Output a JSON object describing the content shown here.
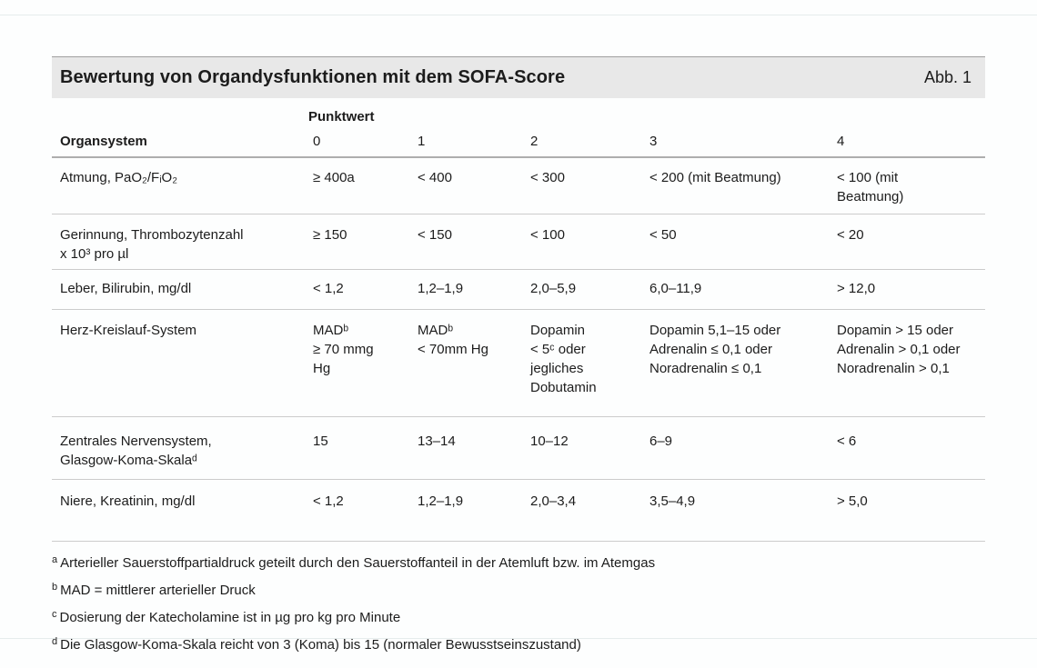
{
  "figure": {
    "title": "Bewertung von Organdysfunktionen mit dem SOFA-Score",
    "label": "Abb. 1"
  },
  "table": {
    "points_header": "Punktwert",
    "columns": [
      "Organsystem",
      "0",
      "1",
      "2",
      "3",
      "4"
    ],
    "rows": [
      {
        "organ": "Atmung, PaO₂/FᵢO₂",
        "scores": [
          "≥ 400a",
          "< 400",
          "< 300",
          "< 200 (mit Beatmung)",
          "< 100 (mit\nBeatmung)"
        ]
      },
      {
        "organ": "Gerinnung, Thrombozytenzahl\nx 10³ pro µl",
        "scores": [
          "≥ 150",
          "< 150",
          "< 100",
          "< 50",
          "< 20"
        ]
      },
      {
        "organ": "Leber, Bilirubin, mg/dl",
        "scores": [
          "< 1,2",
          "1,2–1,9",
          "2,0–5,9",
          "6,0–11,9",
          "> 12,0"
        ]
      },
      {
        "organ": "Herz-Kreislauf-System",
        "scores": [
          "MADᵇ\n≥ 70 mmg\nHg",
          "MADᵇ\n< 70mm Hg",
          "Dopamin\n< 5ᶜ oder\njegliches\nDobutamin",
          "Dopamin 5,1–15 oder\nAdrenalin ≤ 0,1 oder\nNoradrenalin ≤ 0,1",
          "Dopamin > 15 oder\nAdrenalin > 0,1 oder\nNoradrenalin > 0,1"
        ]
      },
      {
        "organ": "Zentrales Nervensystem,\nGlasgow-Koma-Skalaᵈ",
        "scores": [
          "15",
          "13–14",
          "10–12",
          "6–9",
          "< 6"
        ]
      },
      {
        "organ": "Niere, Kreatinin, mg/dl",
        "scores": [
          "< 1,2",
          "1,2–1,9",
          "2,0–3,4",
          "3,5–4,9",
          "> 5,0"
        ]
      }
    ]
  },
  "footnotes": [
    {
      "marker": "a",
      "text": "Arterieller Sauerstoffpartialdruck geteilt durch den Sauerstoffanteil in der Atemluft bzw. im Atemgas"
    },
    {
      "marker": "b",
      "text": "MAD = mittlerer arterieller Druck"
    },
    {
      "marker": "c",
      "text": "Dosierung der Katecholamine ist in µg pro kg pro Minute"
    },
    {
      "marker": "d",
      "text": "Die Glasgow-Koma-Skala reicht von 3 (Koma) bis 15 (normaler Bewusstseinszustand)"
    }
  ],
  "colors": {
    "title_bar_background": "#e8e8e8",
    "text": "#1c1c1c",
    "row_rule": "#cccccc",
    "header_rule": "#aeaeae"
  }
}
